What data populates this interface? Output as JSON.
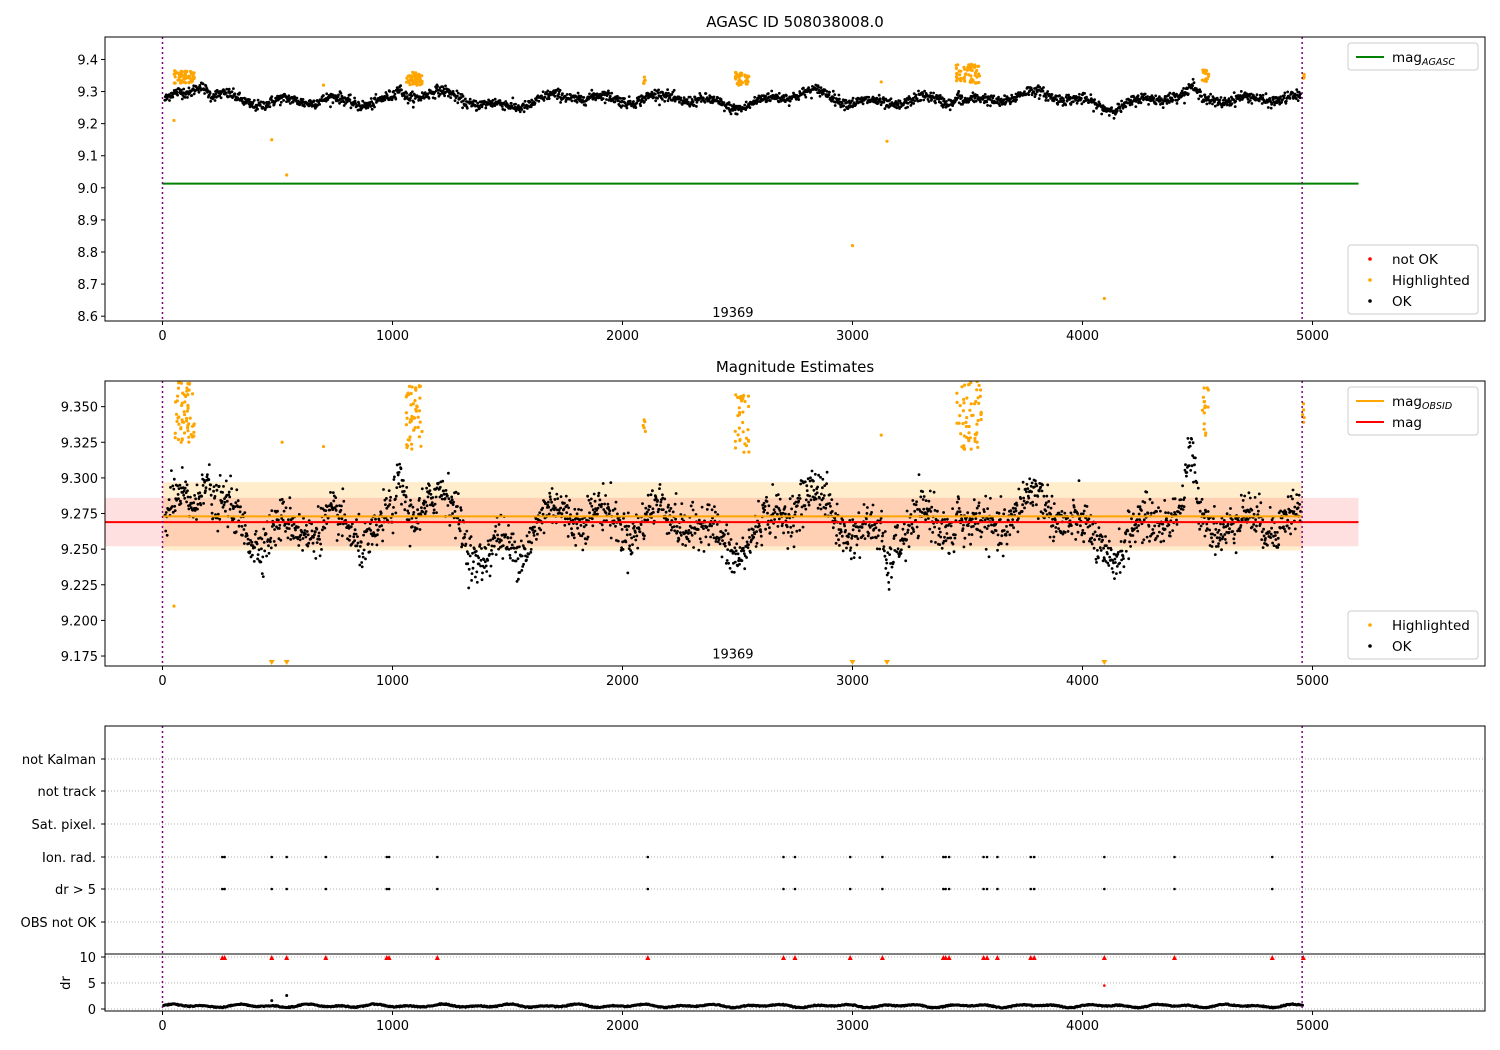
{
  "chart_data": [
    {
      "type": "scatter",
      "title": "AGASC ID 508038008.0",
      "xlim": [
        -250,
        5750
      ],
      "ylim": [
        8.585,
        9.47
      ],
      "xticks": [
        0,
        1000,
        2000,
        3000,
        4000,
        5000
      ],
      "yticks": [
        8.6,
        8.7,
        8.8,
        8.9,
        9.0,
        9.1,
        9.2,
        9.3,
        9.4
      ],
      "ytick_decimals": 1,
      "grid": false,
      "vlines": [
        0,
        4955
      ],
      "annotation": {
        "text": "19369",
        "x": 2480,
        "y": 8.61
      },
      "line_series": [
        {
          "name": "mag_AGASC",
          "y": 9.013,
          "x": [
            0,
            5200
          ],
          "color": "#008000"
        }
      ],
      "band": null,
      "baseline": 9.275,
      "variation_amp": 0.022,
      "noise": 0.012,
      "n_points": 2400,
      "bumps": [
        {
          "x0": 0,
          "x1": 30,
          "d": -0.005
        },
        {
          "x0": 120,
          "x1": 210,
          "d": 0.03
        },
        {
          "x0": 1000,
          "x1": 1060,
          "d": 0.02
        },
        {
          "x0": 3440,
          "x1": 3480,
          "d": 0.02
        },
        {
          "x0": 4450,
          "x1": 4500,
          "d": 0.02
        }
      ],
      "highlight_clusters": [
        {
          "x0": 50,
          "x1": 140,
          "n": 60,
          "ylo": 9.325,
          "yhi": 9.365
        },
        {
          "x0": 1060,
          "x1": 1130,
          "n": 50,
          "ylo": 9.32,
          "yhi": 9.36
        },
        {
          "x0": 2090,
          "x1": 2100,
          "n": 5,
          "ylo": 9.325,
          "yhi": 9.345
        },
        {
          "x0": 2490,
          "x1": 2550,
          "n": 35,
          "ylo": 9.32,
          "yhi": 9.36
        },
        {
          "x0": 3450,
          "x1": 3560,
          "n": 60,
          "ylo": 9.325,
          "yhi": 9.385
        },
        {
          "x0": 4520,
          "x1": 4550,
          "n": 15,
          "ylo": 9.33,
          "yhi": 9.37
        },
        {
          "x0": 4955,
          "x1": 4965,
          "n": 5,
          "ylo": 9.335,
          "yhi": 9.355
        }
      ],
      "highlight_points": [
        {
          "x": 50,
          "y": 9.21
        },
        {
          "x": 475,
          "y": 9.15
        },
        {
          "x": 540,
          "y": 9.04
        },
        {
          "x": 3000,
          "y": 8.82
        },
        {
          "x": 3150,
          "y": 9.145
        },
        {
          "x": 4095,
          "y": 8.655
        },
        {
          "x": 700,
          "y": 9.32
        },
        {
          "x": 3125,
          "y": 9.33
        }
      ],
      "edge_markers": [],
      "legends": [
        {
          "position": "top-right",
          "items": [
            {
              "label": "mag",
              "sub": "AGASC",
              "color": "#008000",
              "kind": "line"
            }
          ]
        },
        {
          "position": "bottom-right",
          "items": [
            {
              "label": "not OK",
              "color": "#ff0000",
              "kind": "dot"
            },
            {
              "label": "Highlighted",
              "color": "#ffa500",
              "kind": "dot"
            },
            {
              "label": "OK",
              "color": "#000000",
              "kind": "dot"
            }
          ]
        }
      ]
    },
    {
      "type": "scatter",
      "title": "Magnitude Estimates",
      "xlim": [
        -250,
        5750
      ],
      "ylim": [
        9.168,
        9.368
      ],
      "xticks": [
        0,
        1000,
        2000,
        3000,
        4000,
        5000
      ],
      "yticks": [
        9.175,
        9.2,
        9.225,
        9.25,
        9.275,
        9.3,
        9.325,
        9.35
      ],
      "ytick_decimals": 3,
      "grid": false,
      "vlines": [
        0,
        4955
      ],
      "annotation": {
        "text": "19369",
        "x": 2480,
        "y": 9.176
      },
      "line_series": [
        {
          "name": "mag_OBSID",
          "y": 9.273,
          "x": [
            0,
            4955
          ],
          "color": "#ffa500"
        },
        {
          "name": "mag",
          "y": 9.269,
          "x": [
            -250,
            5200
          ],
          "color": "#ff0000"
        }
      ],
      "band": [
        {
          "x": [
            0,
            4955
          ],
          "ylo": 9.249,
          "yhi": 9.297,
          "color": "#ffa500",
          "alpha": 0.2
        },
        {
          "x": [
            -250,
            5200
          ],
          "ylo": 9.252,
          "yhi": 9.286,
          "color": "#ff0000",
          "alpha": 0.12
        }
      ],
      "baseline": 9.268,
      "variation_amp": 0.018,
      "noise": 0.011,
      "n_points": 2400,
      "bumps": [
        {
          "x0": 150,
          "x1": 220,
          "d": 0.025
        },
        {
          "x0": 1000,
          "x1": 1070,
          "d": 0.02
        },
        {
          "x0": 3440,
          "x1": 3480,
          "d": 0.02
        },
        {
          "x0": 4440,
          "x1": 4500,
          "d": 0.03
        },
        {
          "x0": 1300,
          "x1": 1460,
          "d": -0.015
        },
        {
          "x0": 3130,
          "x1": 3180,
          "d": -0.02
        }
      ],
      "highlight_clusters": [
        {
          "x0": 50,
          "x1": 140,
          "n": 60,
          "ylo": 9.325,
          "yhi": 9.368
        },
        {
          "x0": 1060,
          "x1": 1130,
          "n": 50,
          "ylo": 9.32,
          "yhi": 9.368
        },
        {
          "x0": 2090,
          "x1": 2100,
          "n": 5,
          "ylo": 9.327,
          "yhi": 9.343
        },
        {
          "x0": 2490,
          "x1": 2550,
          "n": 35,
          "ylo": 9.318,
          "yhi": 9.36
        },
        {
          "x0": 3450,
          "x1": 3560,
          "n": 60,
          "ylo": 9.32,
          "yhi": 9.368
        },
        {
          "x0": 4520,
          "x1": 4550,
          "n": 15,
          "ylo": 9.325,
          "yhi": 9.368
        },
        {
          "x0": 4955,
          "x1": 4965,
          "n": 5,
          "ylo": 9.338,
          "yhi": 9.355
        }
      ],
      "highlight_points": [
        {
          "x": 50,
          "y": 9.21
        },
        {
          "x": 700,
          "y": 9.322
        },
        {
          "x": 520,
          "y": 9.325
        },
        {
          "x": 3125,
          "y": 9.33
        }
      ],
      "edge_markers": [
        475,
        540,
        3000,
        3150,
        4095
      ],
      "legends": [
        {
          "position": "top-right",
          "items": [
            {
              "label": "mag",
              "sub": "OBSID",
              "color": "#ffa500",
              "kind": "line"
            },
            {
              "label": "mag",
              "sub": "",
              "color": "#ff0000",
              "kind": "line"
            }
          ]
        },
        {
          "position": "bottom-right",
          "items": [
            {
              "label": "Highlighted",
              "color": "#ffa500",
              "kind": "dot"
            },
            {
              "label": "OK",
              "color": "#000000",
              "kind": "dot"
            }
          ]
        }
      ]
    },
    {
      "type": "scatter",
      "title": "",
      "xlim": [
        -250,
        5750
      ],
      "categories": [
        "not Kalman",
        "not track",
        "Sat. pixel.",
        "Ion. rad.",
        "dr > 5",
        "OBS not OK"
      ],
      "flag_events": {
        "Ion. rad.": [
          260,
          270,
          475,
          540,
          710,
          975,
          985,
          1195,
          2110,
          2700,
          2750,
          2990,
          3130,
          3395,
          3405,
          3420,
          3570,
          3585,
          3630,
          3775,
          3790,
          4095,
          4400,
          4825
        ],
        "dr > 5": [
          260,
          270,
          475,
          540,
          710,
          975,
          985,
          1195,
          2110,
          2700,
          2750,
          2990,
          3130,
          3395,
          3405,
          3420,
          3570,
          3585,
          3630,
          3775,
          3790,
          4095,
          4400,
          4825
        ]
      },
      "dr_ylabel": "dr",
      "dr_yticks": [
        0,
        5,
        10
      ],
      "dr_ylim": [
        -0.5,
        10.5
      ],
      "dr_markers_at_10": [
        260,
        270,
        475,
        540,
        710,
        975,
        985,
        1195,
        2110,
        2700,
        2750,
        2990,
        3130,
        3395,
        3405,
        3420,
        3570,
        3585,
        3630,
        3775,
        3790,
        4095,
        4400,
        4825,
        4960
      ],
      "dr_red_points": [
        {
          "x": 4095,
          "y": 4.5
        }
      ],
      "dr_baseline": 0.5,
      "vlines": [
        0,
        4955
      ],
      "xticks": [
        0,
        1000,
        2000,
        3000,
        4000,
        5000
      ]
    }
  ],
  "colors": {
    "ok": "#000000",
    "highlighted": "#ffa500",
    "not_ok": "#ff0000",
    "vline": "#800080",
    "agasc": "#008000"
  }
}
